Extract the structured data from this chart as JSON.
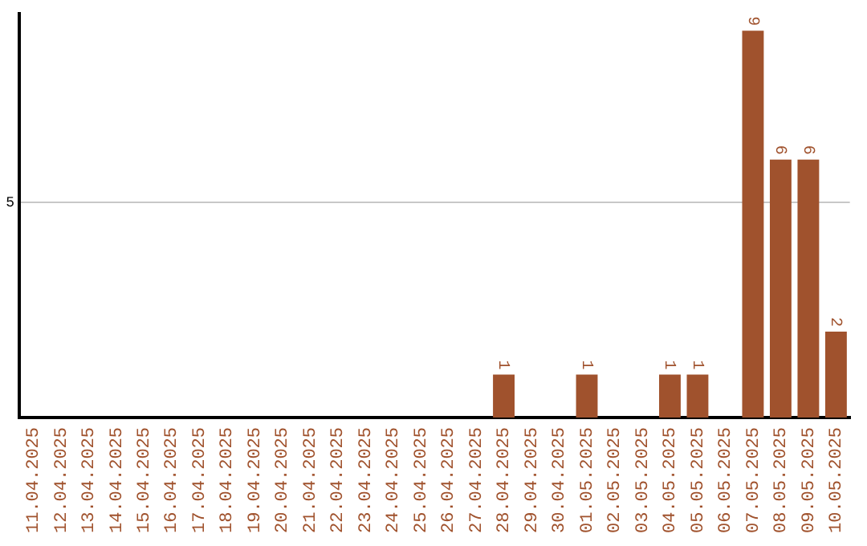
{
  "chart_data": {
    "type": "bar",
    "categories": [
      "11.04.2025",
      "12.04.2025",
      "13.04.2025",
      "14.04.2025",
      "15.04.2025",
      "16.04.2025",
      "17.04.2025",
      "18.04.2025",
      "19.04.2025",
      "20.04.2025",
      "21.04.2025",
      "22.04.2025",
      "23.04.2025",
      "24.04.2025",
      "25.04.2025",
      "26.04.2025",
      "27.04.2025",
      "28.04.2025",
      "29.04.2025",
      "30.04.2025",
      "01.05.2025",
      "02.05.2025",
      "03.05.2025",
      "04.05.2025",
      "05.05.2025",
      "06.05.2025",
      "07.05.2025",
      "08.05.2025",
      "09.05.2025",
      "10.05.2025"
    ],
    "values": [
      null,
      null,
      null,
      null,
      null,
      null,
      null,
      null,
      null,
      null,
      null,
      null,
      null,
      null,
      null,
      null,
      null,
      1,
      null,
      null,
      1,
      null,
      null,
      1,
      1,
      null,
      9,
      6,
      6,
      2
    ],
    "data_labels": true,
    "color": "#a0522d",
    "ylim": [
      0,
      9.4
    ],
    "yticks": [
      5
    ],
    "grid": "y"
  }
}
